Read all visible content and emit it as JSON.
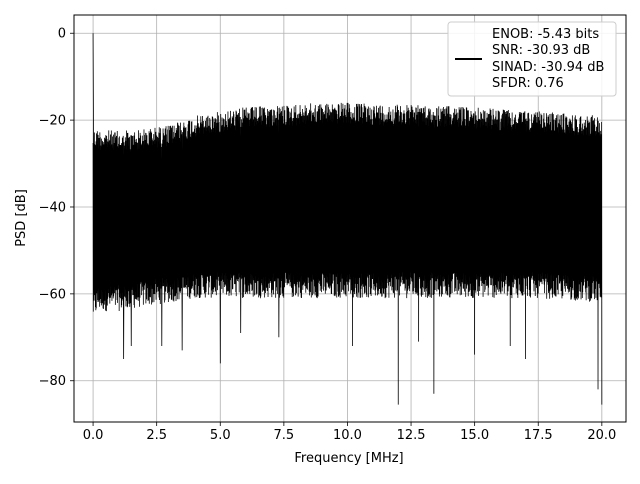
{
  "chart_data": {
    "type": "line",
    "xlabel": "Frequency [MHz]",
    "ylabel": "PSD [dB]",
    "xlim": [
      -0.75,
      20.95
    ],
    "ylim": [
      -89.5,
      4.2
    ],
    "xticks": [
      0.0,
      2.5,
      5.0,
      7.5,
      10.0,
      12.5,
      15.0,
      17.5,
      20.0
    ],
    "xtick_labels": [
      "0.0",
      "2.5",
      "5.0",
      "7.5",
      "10.0",
      "12.5",
      "15.0",
      "17.5",
      "20.0"
    ],
    "yticks": [
      0,
      -20,
      -40,
      -60,
      -80
    ],
    "ytick_labels": [
      "0",
      "−20",
      "−40",
      "−60",
      "−80"
    ],
    "grid": true,
    "legend_placement": "top-right",
    "legend_lines": [
      "ENOB: -5.43 bits",
      "SNR: -30.93 dB",
      "SINAD: -30.94 dB",
      "SFDR: 0.76"
    ],
    "series_color": "#000000",
    "envelope": {
      "x": [
        0.0,
        0.2,
        1.0,
        2.0,
        3.0,
        4.0,
        5.0,
        6.0,
        7.5,
        9.0,
        10.0,
        12.5,
        15.0,
        17.5,
        20.0
      ],
      "upper": [
        0.0,
        -22,
        -22.5,
        -22,
        -21,
        -19,
        -18,
        -17,
        -16.5,
        -16,
        -16,
        -16.5,
        -17,
        -18,
        -19
      ],
      "lower_typical": [
        -66,
        -64,
        -64,
        -63,
        -62,
        -61,
        -61,
        -61,
        -61,
        -61,
        -61,
        -61,
        -61,
        -61,
        -62
      ]
    },
    "peaks": [
      {
        "x": 0.0,
        "y": 0.0
      },
      {
        "x": 0.04,
        "y": -55
      }
    ],
    "dips": [
      {
        "x": 1.2,
        "y": -75
      },
      {
        "x": 1.5,
        "y": -72
      },
      {
        "x": 2.7,
        "y": -72
      },
      {
        "x": 3.5,
        "y": -73
      },
      {
        "x": 5.0,
        "y": -76
      },
      {
        "x": 5.8,
        "y": -69
      },
      {
        "x": 7.3,
        "y": -70
      },
      {
        "x": 10.2,
        "y": -72
      },
      {
        "x": 12.0,
        "y": -85.5
      },
      {
        "x": 12.8,
        "y": -71
      },
      {
        "x": 13.4,
        "y": -83
      },
      {
        "x": 15.0,
        "y": -74
      },
      {
        "x": 16.4,
        "y": -72
      },
      {
        "x": 17.0,
        "y": -75
      },
      {
        "x": 19.85,
        "y": -82
      },
      {
        "x": 20.0,
        "y": -85.5
      }
    ]
  }
}
